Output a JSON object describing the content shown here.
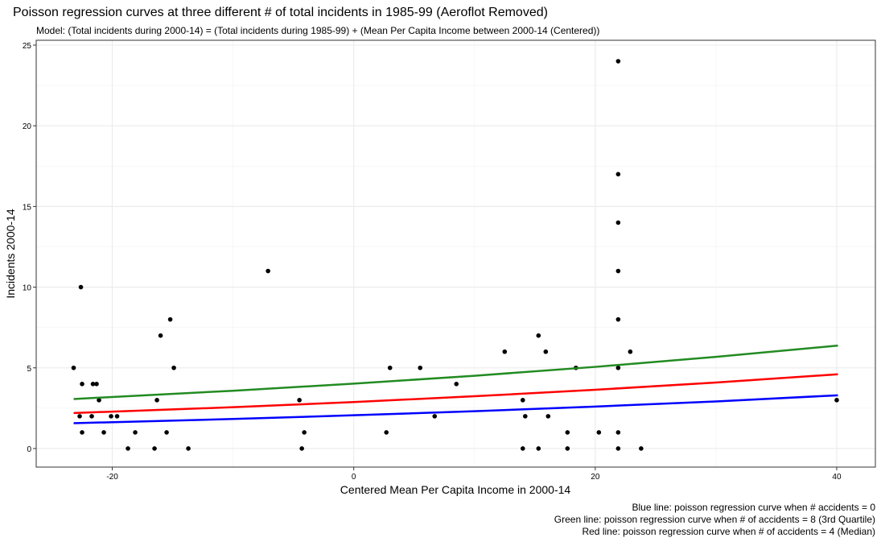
{
  "chart_data": {
    "type": "scatter",
    "title": "Poisson regression curves at three different # of total incidents in 1985-99 (Aeroflot Removed)",
    "subtitle": "Model: (Total incidents during 2000-14) = (Total incidents during 1985-99) + (Mean Per Capita Income between 2000-14 (Centered))",
    "xlabel": "Centered Mean Per Capita Income in 2000-14",
    "ylabel": "Incidents 2000-14",
    "xlim": [
      -26.3,
      43.2
    ],
    "ylim": [
      -1.15,
      25.3
    ],
    "xticks": [
      -20,
      0,
      20,
      40
    ],
    "yticks": [
      0,
      5,
      10,
      15,
      20,
      25
    ],
    "grid": true,
    "point_color": "#000000",
    "x": [
      -23.2,
      -22.6,
      -22.7,
      -22.5,
      -22.5,
      -21.7,
      -21.6,
      -21.3,
      -21.1,
      -20.7,
      -20.1,
      -19.6,
      -18.7,
      -18.1,
      -16.5,
      -16.3,
      -16,
      -15.5,
      -15.2,
      -14.9,
      -13.7,
      -7.1,
      -4.5,
      -4.3,
      -4.1,
      2.7,
      3,
      5.5,
      6.7,
      8.5,
      12.5,
      14,
      14,
      14.2,
      15.3,
      15.3,
      15.9,
      16.1,
      17.7,
      17.7,
      18.4,
      20.3,
      21.9,
      21.9,
      21.9,
      21.9,
      21.9,
      21.9,
      21.9,
      21.9,
      22.9,
      23.8,
      40
    ],
    "values": [
      5,
      10,
      2,
      4,
      1,
      2,
      4,
      4,
      3,
      1,
      2,
      2,
      0,
      1,
      0,
      3,
      7,
      1,
      8,
      5,
      0,
      11,
      3,
      0,
      1,
      1,
      5,
      5,
      2,
      4,
      6,
      3,
      0,
      2,
      7,
      0,
      6,
      2,
      1,
      0,
      5,
      1,
      24,
      17,
      14,
      11,
      8,
      5,
      1,
      0,
      6,
      0,
      3
    ],
    "lines": [
      {
        "color": "#0000ff",
        "x": [
          -23.2,
          -10,
          0,
          10,
          20,
          30,
          40.1
        ],
        "values": [
          1.57,
          1.83,
          2.06,
          2.31,
          2.6,
          2.92,
          3.3
        ]
      },
      {
        "color": "#ff0000",
        "x": [
          -23.2,
          -10,
          0,
          10,
          20,
          30,
          40.1
        ],
        "values": [
          2.2,
          2.56,
          2.88,
          3.24,
          3.64,
          4.09,
          4.6
        ]
      },
      {
        "color": "#228b22",
        "x": [
          -23.2,
          -10,
          0,
          10,
          20,
          30,
          40.1
        ],
        "values": [
          3.07,
          3.58,
          4.02,
          4.51,
          5.06,
          5.68,
          6.38
        ]
      }
    ],
    "captions": [
      "Blue line: poisson regression curve when # accidents = 0",
      "Green line: poisson regression curve when # of accidents = 8 (3rd Quartile)",
      "Red line: poisson regression curve when # of accidents = 4 (Median)"
    ]
  }
}
